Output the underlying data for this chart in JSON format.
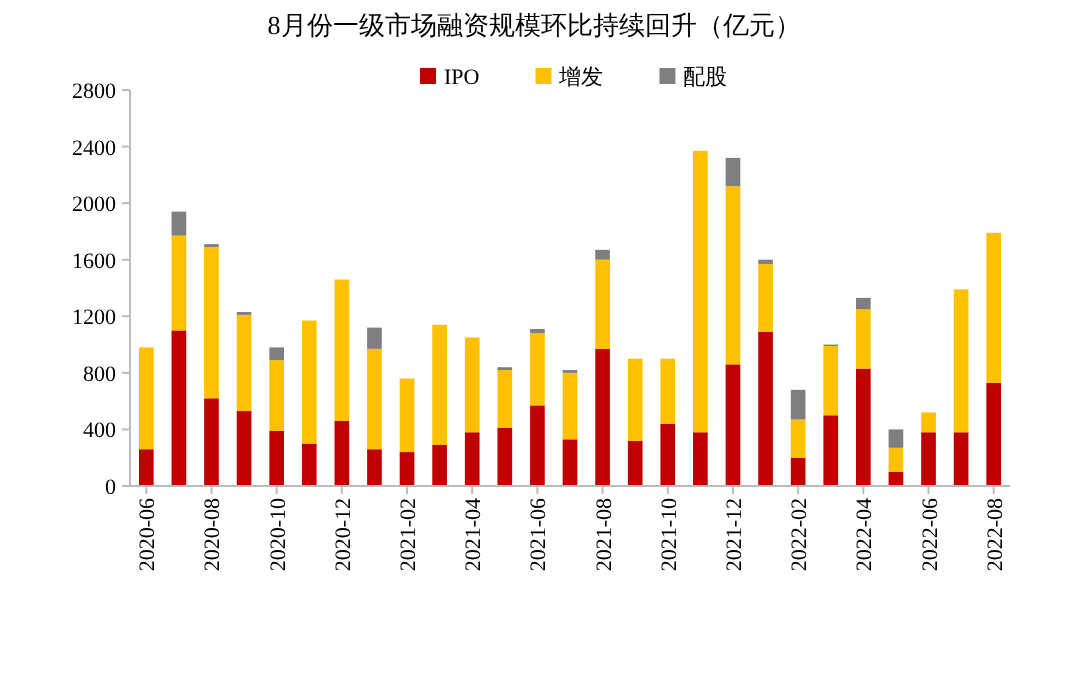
{
  "chart_data": {
    "type": "bar",
    "stacked": true,
    "title": "8月份一级市场融资规模环比持续回升（亿元）",
    "categories": [
      "2020-06",
      null,
      "2020-08",
      null,
      "2020-10",
      null,
      "2020-12",
      null,
      "2021-02",
      null,
      "2021-04",
      null,
      "2021-06",
      null,
      "2021-08",
      null,
      "2021-10",
      null,
      "2021-12",
      null,
      "2022-02",
      null,
      "2022-04",
      null,
      "2022-06",
      null,
      "2022-08"
    ],
    "series": [
      {
        "name": "IPO",
        "color": "#c00000",
        "values": [
          260,
          1100,
          620,
          530,
          390,
          300,
          460,
          260,
          240,
          290,
          380,
          410,
          570,
          330,
          970,
          320,
          440,
          380,
          860,
          1090,
          200,
          500,
          830,
          100,
          380,
          380,
          730
        ]
      },
      {
        "name": "增发",
        "color": "#ffc000",
        "values": [
          720,
          670,
          1070,
          680,
          500,
          870,
          1000,
          710,
          520,
          850,
          670,
          410,
          510,
          470,
          630,
          580,
          460,
          1990,
          1260,
          480,
          270,
          490,
          420,
          170,
          140,
          1010,
          1060
        ]
      },
      {
        "name": "配股",
        "color": "#7f7f7f",
        "values": [
          0,
          170,
          20,
          20,
          90,
          0,
          0,
          150,
          0,
          0,
          0,
          20,
          30,
          20,
          70,
          0,
          0,
          0,
          200,
          30,
          210,
          10,
          80,
          130,
          0,
          0,
          0
        ]
      }
    ],
    "ylim": [
      0,
      2800
    ],
    "yticks": [
      0,
      400,
      800,
      1200,
      1600,
      2000,
      2400,
      2800
    ],
    "grid": false,
    "legend": "top right"
  }
}
